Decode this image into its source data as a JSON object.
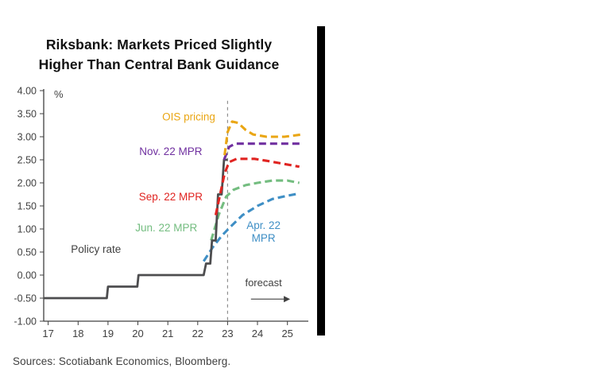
{
  "window": {
    "edge_bar_color": "#000000"
  },
  "chart_data": {
    "type": "line",
    "title": "Riksbank: Markets Priced Slightly\nHigher Than Central Bank Guidance",
    "unit_label": "%",
    "source": "Sources: Scotiabank Economics, Bloomberg.",
    "x_ticks": [
      17,
      18,
      19,
      20,
      21,
      22,
      23,
      24,
      25
    ],
    "x_range": [
      16.85,
      25.7
    ],
    "y_tick_labels": [
      "4.00",
      "3.50",
      "3.00",
      "2.50",
      "2.00",
      "1.50",
      "1.00",
      "0.50",
      "0.00",
      "-0.50",
      "-1.00"
    ],
    "y_tick_values": [
      4,
      3.5,
      3,
      2.5,
      2,
      1.5,
      1,
      0.5,
      0,
      -0.5,
      -1
    ],
    "y_range": [
      -1,
      4
    ],
    "grid": false,
    "legend_position": "inline-annotations",
    "forecast": {
      "divider_x": 23,
      "label": "forecast"
    },
    "series": [
      {
        "name": "Apr. 22 MPR",
        "color": "#3f8fc5",
        "style": "dashed",
        "points": [
          [
            22.2,
            0.3
          ],
          [
            22.5,
            0.6
          ],
          [
            22.8,
            0.85
          ],
          [
            23.1,
            1.05
          ],
          [
            23.5,
            1.3
          ],
          [
            24.0,
            1.5
          ],
          [
            24.5,
            1.65
          ],
          [
            25.0,
            1.72
          ],
          [
            25.4,
            1.77
          ]
        ]
      },
      {
        "name": "Jun. 22 MPR",
        "color": "#74bd80",
        "style": "dashed",
        "points": [
          [
            22.45,
            0.75
          ],
          [
            22.7,
            1.3
          ],
          [
            22.95,
            1.7
          ],
          [
            23.2,
            1.85
          ],
          [
            23.6,
            1.95
          ],
          [
            24.0,
            2.0
          ],
          [
            24.5,
            2.05
          ],
          [
            25.0,
            2.05
          ],
          [
            25.4,
            2.0
          ]
        ]
      },
      {
        "name": "Policy rate",
        "color": "#4d4d4f",
        "style": "solid",
        "points": [
          [
            16.85,
            -0.5
          ],
          [
            18.96,
            -0.5
          ],
          [
            19.0,
            -0.25
          ],
          [
            19.98,
            -0.25
          ],
          [
            20.02,
            0.0
          ],
          [
            22.2,
            0.0
          ],
          [
            22.28,
            0.25
          ],
          [
            22.42,
            0.25
          ],
          [
            22.48,
            0.75
          ],
          [
            22.6,
            0.75
          ],
          [
            22.68,
            1.75
          ],
          [
            22.8,
            1.75
          ],
          [
            22.88,
            2.5
          ],
          [
            23.0,
            2.5
          ]
        ]
      },
      {
        "name": "Sep. 22 MPR",
        "color": "#e02421",
        "style": "dashed",
        "points": [
          [
            22.6,
            1.3
          ],
          [
            22.75,
            1.75
          ],
          [
            22.9,
            2.2
          ],
          [
            23.05,
            2.45
          ],
          [
            23.3,
            2.52
          ],
          [
            23.9,
            2.52
          ],
          [
            24.3,
            2.48
          ],
          [
            24.8,
            2.42
          ],
          [
            25.4,
            2.35
          ]
        ]
      },
      {
        "name": "Nov. 22 MPR",
        "color": "#7030a0",
        "style": "dashed",
        "points": [
          [
            22.88,
            2.5
          ],
          [
            23.05,
            2.78
          ],
          [
            23.25,
            2.85
          ],
          [
            24.0,
            2.85
          ],
          [
            25.5,
            2.85
          ]
        ]
      },
      {
        "name": "OIS pricing",
        "color": "#eaa614",
        "style": "dashed",
        "points": [
          [
            22.9,
            2.6
          ],
          [
            23.0,
            3.1
          ],
          [
            23.15,
            3.33
          ],
          [
            23.35,
            3.3
          ],
          [
            23.6,
            3.15
          ],
          [
            23.85,
            3.05
          ],
          [
            24.3,
            3.0
          ],
          [
            24.9,
            3.0
          ],
          [
            25.5,
            3.05
          ]
        ]
      }
    ],
    "annotations": [
      {
        "text": "OIS pricing",
        "color": "#eaa614",
        "x": 21.7,
        "y": 3.35
      },
      {
        "text": "Nov. 22 MPR",
        "color": "#7030a0",
        "x": 21.1,
        "y": 2.6
      },
      {
        "text": "Sep. 22 MPR",
        "color": "#e02421",
        "x": 21.1,
        "y": 1.62
      },
      {
        "text": "Jun. 22 MPR",
        "color": "#74bd80",
        "x": 20.95,
        "y": 0.95
      },
      {
        "text": "Apr. 22\nMPR",
        "color": "#3f8fc5",
        "x": 24.2,
        "y": 1.0
      },
      {
        "text": "Policy rate",
        "color": "#404040",
        "x": 18.6,
        "y": 0.48
      }
    ]
  }
}
